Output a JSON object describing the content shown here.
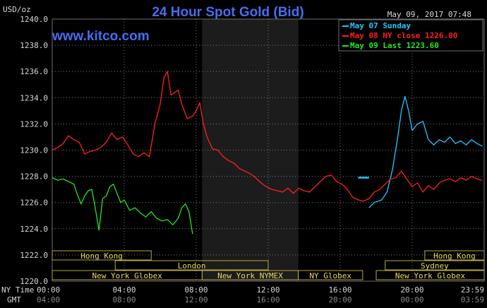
{
  "title": "24 Hour Spot Gold (Bid)",
  "site": "www.kitco.com",
  "unit_label": "USD/oz",
  "timestamp": "May 09, 2017 07:48",
  "axis_rows": {
    "ny_label": "NY Time",
    "gmt_label": "GMT"
  },
  "chart_data": {
    "type": "line",
    "ylim": [
      1220,
      1240
    ],
    "y_ticks": [
      "1220.0",
      "1222.0",
      "1224.0",
      "1226.0",
      "1228.0",
      "1230.0",
      "1232.0",
      "1234.0",
      "1236.0",
      "1238.0",
      "1240.0"
    ],
    "x_ticks": [
      {
        "hour": 0,
        "ny": "00:00",
        "gmt": "04:00"
      },
      {
        "hour": 4,
        "ny": "04:00",
        "gmt": "08:00"
      },
      {
        "hour": 8,
        "ny": "08:00",
        "gmt": "12:00"
      },
      {
        "hour": 12,
        "ny": "12:00",
        "gmt": "16:00"
      },
      {
        "hour": 16,
        "ny": "16:00",
        "gmt": "20:00"
      },
      {
        "hour": 20,
        "ny": "20:00",
        "gmt": "00:00"
      },
      {
        "hour": 24,
        "ny": "23:59",
        "gmt": "03:59"
      }
    ],
    "nymex_shade_hours": [
      8.33,
      13.67
    ],
    "legend": [
      {
        "label": "May 07 Sunday",
        "color": "#22c8ff"
      },
      {
        "label": "May 08 NY close 1226.00",
        "color": "#ff2020"
      },
      {
        "label": "May 09 Last 1223.60",
        "color": "#22e822"
      }
    ],
    "series": [
      {
        "name": "May 07 Sunday",
        "color": "#22c8ff",
        "x": [
          17.6,
          17.9,
          18.3,
          18.6,
          18.9,
          19.2,
          19.4,
          19.6,
          19.8,
          20.0,
          20.3,
          20.6,
          20.9,
          21.2,
          21.5,
          21.8,
          22.1,
          22.4,
          22.7,
          23.0,
          23.3,
          23.6,
          23.9
        ],
        "y": [
          1225.6,
          1226.0,
          1226.2,
          1226.8,
          1228.5,
          1231.0,
          1233.0,
          1234.1,
          1233.0,
          1231.5,
          1232.0,
          1232.2,
          1230.8,
          1230.4,
          1230.8,
          1230.6,
          1231.0,
          1230.5,
          1230.7,
          1230.4,
          1230.8,
          1230.5,
          1230.3
        ]
      },
      {
        "name": "May 08 NY close 1226.00",
        "color": "#ff2020",
        "x": [
          0.0,
          0.3,
          0.6,
          0.9,
          1.2,
          1.5,
          1.8,
          2.1,
          2.4,
          2.7,
          3.0,
          3.3,
          3.6,
          3.9,
          4.2,
          4.5,
          4.8,
          5.1,
          5.4,
          5.7,
          6.0,
          6.2,
          6.4,
          6.6,
          6.8,
          7.0,
          7.2,
          7.5,
          7.8,
          8.0,
          8.2,
          8.4,
          8.6,
          8.9,
          9.2,
          9.5,
          9.8,
          10.1,
          10.4,
          10.7,
          11.0,
          11.3,
          11.6,
          11.9,
          12.2,
          12.5,
          12.8,
          13.1,
          13.4,
          13.7,
          14.0,
          14.3,
          14.6,
          14.9,
          15.2,
          15.5,
          15.8,
          16.1,
          16.4,
          16.7,
          17.0,
          17.3,
          17.6,
          17.9,
          18.2,
          18.5,
          18.8,
          19.1,
          19.4,
          19.7,
          20.0,
          20.3,
          20.6,
          20.9,
          21.2,
          21.5,
          21.8,
          22.1,
          22.4,
          22.7,
          23.0,
          23.3,
          23.6,
          23.9
        ],
        "y": [
          1230.0,
          1230.2,
          1230.5,
          1231.1,
          1230.8,
          1230.6,
          1229.7,
          1229.9,
          1230.0,
          1230.2,
          1230.6,
          1231.3,
          1230.8,
          1231.0,
          1230.4,
          1229.7,
          1229.5,
          1229.8,
          1229.5,
          1232.0,
          1233.5,
          1235.5,
          1236.0,
          1234.2,
          1234.4,
          1234.6,
          1233.5,
          1232.4,
          1232.6,
          1233.0,
          1233.6,
          1232.0,
          1231.0,
          1230.1,
          1230.0,
          1229.5,
          1229.2,
          1229.0,
          1228.6,
          1228.4,
          1228.2,
          1227.9,
          1227.5,
          1227.2,
          1227.0,
          1226.9,
          1226.8,
          1227.1,
          1226.7,
          1227.1,
          1226.9,
          1226.8,
          1227.2,
          1227.6,
          1228.0,
          1228.1,
          1227.6,
          1227.4,
          1227.0,
          1226.4,
          1226.2,
          1226.1,
          1226.3,
          1226.8,
          1227.0,
          1227.4,
          1227.8,
          1227.9,
          1228.4,
          1227.8,
          1227.2,
          1227.5,
          1226.8,
          1227.3,
          1227.0,
          1227.5,
          1227.7,
          1227.8,
          1227.6,
          1227.9,
          1227.7,
          1228.0,
          1227.8,
          1227.7
        ]
      },
      {
        "name": "May 09 Last 1223.60",
        "color": "#22e822",
        "x": [
          0.0,
          0.3,
          0.6,
          0.9,
          1.2,
          1.4,
          1.6,
          1.8,
          2.0,
          2.2,
          2.4,
          2.6,
          2.8,
          3.0,
          3.2,
          3.4,
          3.6,
          3.8,
          4.0,
          4.3,
          4.6,
          4.9,
          5.2,
          5.5,
          5.8,
          6.1,
          6.4,
          6.7,
          7.0,
          7.2,
          7.4,
          7.6,
          7.8
        ],
        "y": [
          1227.9,
          1227.7,
          1227.8,
          1227.6,
          1227.4,
          1226.6,
          1225.9,
          1226.5,
          1226.9,
          1227.0,
          1225.5,
          1223.9,
          1226.3,
          1226.5,
          1227.2,
          1227.4,
          1226.7,
          1226.0,
          1226.2,
          1225.4,
          1225.6,
          1225.2,
          1224.9,
          1225.3,
          1224.8,
          1224.6,
          1224.7,
          1224.3,
          1224.8,
          1225.6,
          1225.9,
          1225.3,
          1223.6
        ]
      }
    ],
    "sunday_marker": {
      "x": [
        17.0,
        17.6
      ],
      "y": 1227.9
    },
    "session_rows": [
      [
        {
          "label": "Hong Kong",
          "start": 0.0,
          "end": 5.5
        },
        {
          "label": "Hong Kong",
          "start": 20.7,
          "end": 24.0
        }
      ],
      [
        {
          "label": "London",
          "start": 3.5,
          "end": 12.0
        },
        {
          "label": "Sydney",
          "start": 18.5,
          "end": 24.0
        }
      ],
      [
        {
          "label": "New York Globex",
          "start": 0.0,
          "end": 8.33
        },
        {
          "label": "New York NYMEX",
          "start": 8.33,
          "end": 13.67
        },
        {
          "label": "NY Globex",
          "start": 13.67,
          "end": 17.25
        },
        {
          "label": "New York Globex",
          "start": 18.0,
          "end": 24.0
        }
      ]
    ]
  }
}
